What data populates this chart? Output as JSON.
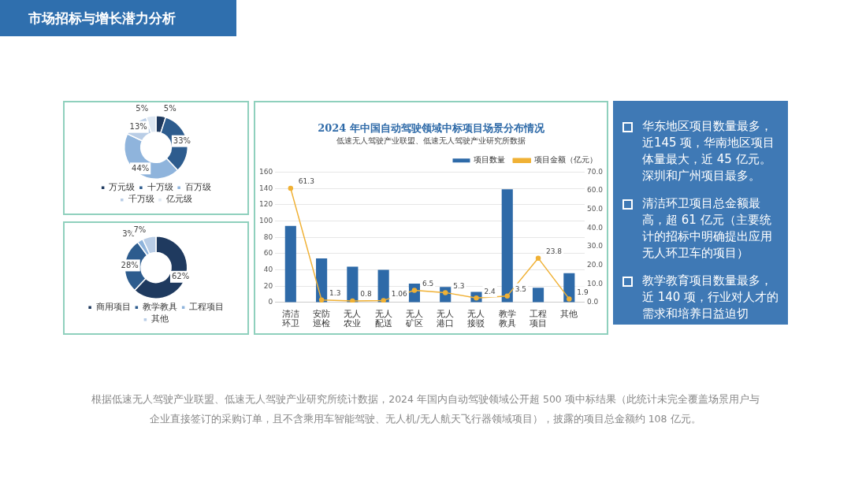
{
  "chart_data": [
    {
      "type": "donut",
      "categories": [
        "万元级",
        "十万级",
        "百万级",
        "千万级",
        "亿元级"
      ],
      "values": [
        5,
        33,
        44,
        13,
        5
      ],
      "colors": [
        "#1f3a5f",
        "#2d5c8e",
        "#8fb4dc",
        "#b9cde6",
        "#dde7f2"
      ],
      "value_labels": [
        "5%",
        "33%",
        "44%",
        "13%",
        "5%"
      ],
      "legend": "bottom"
    },
    {
      "type": "donut",
      "categories": [
        "商用项目",
        "教学教具",
        "工程项目",
        "其他"
      ],
      "values": [
        62,
        28,
        3,
        7
      ],
      "colors": [
        "#1f3a5f",
        "#2d5c8e",
        "#8fb4dc",
        "#b9cde6"
      ],
      "value_labels": [
        "62%",
        "28%",
        "3%",
        "7%"
      ],
      "legend": "bottom"
    },
    {
      "type": "bar",
      "title": "2024 年中国自动驾驶领域中标项目场景分布情况",
      "subtitle": "低速无人驾驶产业联盟、低速无人驾驶产业研究所数据",
      "categories": [
        "清洁环卫",
        "安防巡检",
        "无人农业",
        "无人配送",
        "无人矿区",
        "无人港口",
        "无人接驳",
        "教学教具",
        "工程项目",
        "其他"
      ],
      "series": [
        {
          "name": "项目数量",
          "type": "bar",
          "color": "#2e6aa8",
          "values": [
            94,
            54,
            44,
            40,
            23,
            19,
            13,
            139,
            18,
            36
          ]
        },
        {
          "name": "项目金额（亿元）",
          "type": "line",
          "axis": "y2",
          "color": "#f0b135",
          "marker": "circle",
          "values": [
            61.3,
            1.3,
            0.8,
            1.06,
            6.5,
            5.3,
            2.4,
            3.5,
            23.8,
            1.9
          ],
          "value_labels": [
            "61.3",
            "1.3",
            "0.8",
            "1.06",
            "6.5",
            "5.3",
            "2.4",
            "3.5",
            "23.8",
            "1.9"
          ]
        }
      ],
      "ylim": [
        0,
        160
      ],
      "yticks": [
        0,
        20,
        40,
        60,
        80,
        100,
        120,
        140,
        160
      ],
      "y2lim": [
        0,
        70
      ],
      "y2ticks": [
        {
          "value": 0,
          "label": "0.0"
        },
        {
          "value": 10,
          "label": "10.0"
        },
        {
          "value": 20,
          "label": "20.0"
        },
        {
          "value": 30,
          "label": "30.0"
        },
        {
          "value": 40,
          "label": "40.0"
        },
        {
          "value": 50,
          "label": "50.0"
        },
        {
          "value": 60,
          "label": "60.0"
        },
        {
          "value": 70,
          "label": "70.0"
        }
      ],
      "grid": "y",
      "legend": "top right",
      "annotations": [
        "根据低速无人驾驶产业联盟、低速无人驾驶产业研究所统计数据，2024 年国内自动驾驶领域公开超 500 项中标结果（此统计未完全覆盖场景用户与企业直接签订的采购订单，且不含乘用车智能驾驶、无人机/无人航天飞行器领域项目），披露的项目总金额约 108 亿元。"
      ]
    },
    {
      "type": "other",
      "title": "市场招标与增长潜力分析",
      "annotations": [
        "华东地区项目数量最多，近145 项，华南地区项目体量最大，近 45 亿元。深圳和广州项目最多。",
        "清洁环卫项目总金额最高，超 61 亿元（主要统计的招标中明确提出应用无人环卫车的项目）",
        "教学教育项目数量最多，近 140 项，行业对人才的需求和培养日益迫切"
      ]
    }
  ]
}
